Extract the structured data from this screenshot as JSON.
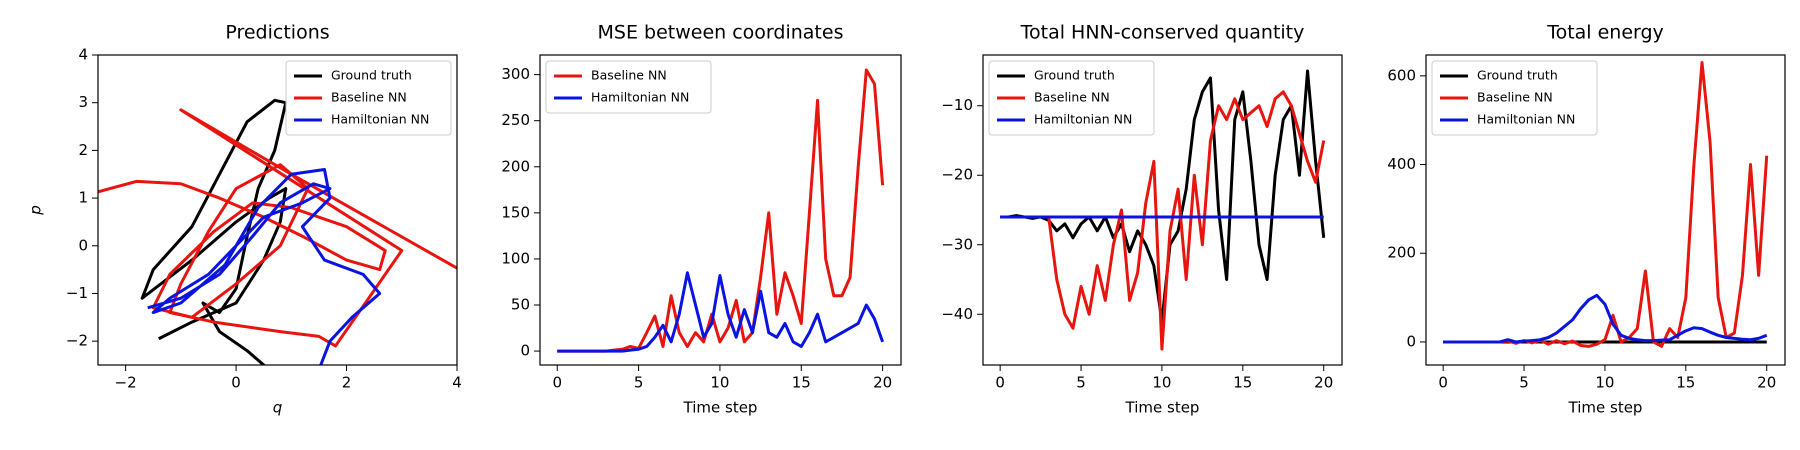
{
  "chart_data": [
    {
      "type": "line",
      "title": "Predictions",
      "x_label": "q",
      "y_label": "p",
      "xlim": [
        -2.5,
        4
      ],
      "ylim": [
        -2.5,
        4
      ],
      "xticks": [
        {
          "value": -2,
          "label": "−2"
        },
        0,
        2,
        4
      ],
      "yticks": [
        {
          "value": -2,
          "label": "−2"
        },
        {
          "value": -1,
          "label": "−1"
        },
        0,
        1,
        2,
        3,
        4
      ],
      "legend": "upper right",
      "series": [
        {
          "name": "Ground truth",
          "color": "#000000",
          "x": [
            -1.4,
            -0.8,
            0,
            0.5,
            0.8,
            0.9,
            0.6,
            0,
            -0.8,
            -1.7,
            -1.5,
            -0.8,
            -0.3,
            0.2,
            0.7,
            0.9,
            0.7,
            0.4,
            0.2,
            0,
            -0.3,
            -0.6,
            -0.3,
            0.2,
            0.6
          ],
          "values": [
            -1.95,
            -1.6,
            -1.2,
            -0.3,
            0.5,
            1.2,
            1.0,
            0.5,
            -0.3,
            -1.1,
            -0.5,
            0.4,
            1.5,
            2.6,
            3.05,
            3.0,
            2.0,
            1.2,
            0.2,
            -0.9,
            -1.4,
            -1.2,
            -1.8,
            -2.2,
            -2.6
          ]
        },
        {
          "name": "Baseline NN",
          "color": "#e8150f",
          "x": [
            -2.6,
            -1.8,
            -1.0,
            -0.3,
            0.5,
            1.2,
            2.0,
            2.6,
            2.7,
            2.0,
            1.0,
            0.3,
            -0.4,
            -1.2,
            -1.5,
            -0.8,
            0,
            0.8,
            1.3,
            0.8,
            0,
            -0.5,
            -1.0,
            -1.2,
            -0.4,
            0.8,
            1.5,
            1.8,
            3.0,
            -1.0,
            1.0,
            4.2
          ],
          "values": [
            1.1,
            1.35,
            1.3,
            1.0,
            0.6,
            0.2,
            -0.3,
            -0.5,
            -0.1,
            0.4,
            0.8,
            0.9,
            0.3,
            -0.6,
            -1.3,
            -1.5,
            -0.8,
            0,
            1.2,
            1.7,
            1.2,
            0.3,
            -0.8,
            -1.4,
            -1.6,
            -1.8,
            -1.9,
            -2.1,
            -0.1,
            2.85,
            1.5,
            -0.6
          ]
        },
        {
          "name": "Hamiltonian NN",
          "color": "#0a14e0",
          "x": [
            -1.6,
            -1.0,
            -0.3,
            0.3,
            0.8,
            1.4,
            1.7,
            1.2,
            0.5,
            0,
            -0.5,
            -1.2,
            -1.5,
            -1.0,
            -0.2,
            0.4,
            1.0,
            1.6,
            1.7,
            1.2,
            1.6,
            2.3,
            2.6,
            2.1,
            1.7,
            1.5
          ],
          "values": [
            -1.3,
            -1.1,
            -0.6,
            0.2,
            0.9,
            1.3,
            1.2,
            0.9,
            0.6,
            0,
            -0.6,
            -1.1,
            -1.4,
            -1.2,
            -0.4,
            0.8,
            1.5,
            1.6,
            1.0,
            0.4,
            -0.3,
            -0.6,
            -1.0,
            -1.5,
            -2.0,
            -2.6
          ]
        }
      ]
    },
    {
      "type": "line",
      "title": "MSE between coordinates",
      "x_label": "Time step",
      "x": [
        0,
        0.5,
        1,
        1.5,
        2,
        2.5,
        3,
        3.5,
        4,
        4.5,
        5,
        5.5,
        6,
        6.5,
        7,
        7.5,
        8,
        8.5,
        9,
        9.5,
        10,
        10.5,
        11,
        11.5,
        12,
        12.5,
        13,
        13.5,
        14,
        14.5,
        15,
        15.5,
        16,
        16.5,
        17,
        17.5,
        18,
        18.5,
        19,
        19.5,
        20
      ],
      "xlim": [
        -1.06,
        21.13
      ],
      "ylim": [
        -15.1,
        321.3
      ],
      "xticks": [
        0,
        5,
        10,
        15,
        20
      ],
      "yticks": [
        0,
        50,
        100,
        150,
        200,
        250,
        300
      ],
      "legend": "upper left",
      "series": [
        {
          "name": "Baseline NN",
          "color": "#e8150f",
          "values": [
            0,
            0,
            0,
            0,
            0,
            0,
            0,
            1,
            2,
            5,
            3,
            20,
            38,
            5,
            60,
            20,
            5,
            20,
            10,
            40,
            10,
            25,
            55,
            10,
            20,
            80,
            150,
            40,
            85,
            60,
            30,
            150,
            272,
            100,
            60,
            60,
            80,
            200,
            305,
            290,
            180
          ]
        },
        {
          "name": "Hamiltonian NN",
          "color": "#0a14e0",
          "values": [
            0,
            0,
            0,
            0,
            0,
            0,
            0,
            0,
            0,
            1,
            2,
            5,
            15,
            28,
            10,
            40,
            85,
            50,
            15,
            30,
            82,
            40,
            15,
            45,
            20,
            65,
            20,
            15,
            30,
            10,
            5,
            20,
            40,
            10,
            15,
            20,
            25,
            30,
            50,
            35,
            10
          ]
        }
      ]
    },
    {
      "type": "line",
      "title": "Total HNN-conserved quantity",
      "x_label": "Time step",
      "x": [
        0,
        0.5,
        1,
        1.5,
        2,
        2.5,
        3,
        3.5,
        4,
        4.5,
        5,
        5.5,
        6,
        6.5,
        7,
        7.5,
        8,
        8.5,
        9,
        9.5,
        10,
        10.5,
        11,
        11.5,
        12,
        12.5,
        13,
        13.5,
        14,
        14.5,
        15,
        15.5,
        16,
        16.5,
        17,
        17.5,
        18,
        18.5,
        19,
        19.5,
        20
      ],
      "xlim": [
        -1.06,
        21.13
      ],
      "ylim": [
        -47.3,
        -2.7
      ],
      "xticks": [
        0,
        5,
        10,
        15,
        20
      ],
      "yticks": [
        {
          "value": -40,
          "label": "−40"
        },
        {
          "value": -30,
          "label": "−30"
        },
        {
          "value": -20,
          "label": "−20"
        },
        {
          "value": -10,
          "label": "−10"
        }
      ],
      "legend": "upper left",
      "series": [
        {
          "name": "Ground truth",
          "color": "#000000",
          "values": [
            -26,
            -26,
            -25.8,
            -26,
            -26.2,
            -26,
            -26.5,
            -28,
            -27,
            -29,
            -27,
            -26,
            -28,
            -26,
            -29,
            -27,
            -31,
            -28,
            -30,
            -33,
            -41,
            -30,
            -28,
            -22,
            -12,
            -8,
            -6,
            -25,
            -35,
            -12,
            -8,
            -18,
            -30,
            -35,
            -20,
            -12,
            -10,
            -20,
            -5,
            -18,
            -29
          ]
        },
        {
          "name": "Baseline NN",
          "color": "#e8150f",
          "values": [
            -26,
            -26,
            -26,
            -26,
            -26,
            -26,
            -26,
            -35,
            -40,
            -42,
            -36,
            -40,
            -33,
            -38,
            -30,
            -25,
            -38,
            -34,
            -24,
            -18,
            -45,
            -28,
            -22,
            -35,
            -20,
            -30,
            -15,
            -10,
            -12,
            -9,
            -12,
            -11,
            -10,
            -13,
            -9,
            -8,
            -10,
            -14,
            -18,
            -21,
            -15
          ]
        },
        {
          "name": "Hamiltonian NN",
          "color": "#0a14e0",
          "values": [
            -26,
            -26,
            -26,
            -26,
            -26,
            -26,
            -26,
            -26,
            -26,
            -26,
            -26,
            -26,
            -26,
            -26,
            -26,
            -26,
            -26,
            -26,
            -26,
            -26,
            -26,
            -26,
            -26,
            -26,
            -26,
            -26,
            -26,
            -26,
            -26,
            -26,
            -26,
            -26,
            -26,
            -26,
            -26,
            -26,
            -26,
            -26,
            -26,
            -26,
            -26
          ]
        }
      ]
    },
    {
      "type": "line",
      "title": "Total energy",
      "x_label": "Time step",
      "x": [
        0,
        0.5,
        1,
        1.5,
        2,
        2.5,
        3,
        3.5,
        4,
        4.5,
        5,
        5.5,
        6,
        6.5,
        7,
        7.5,
        8,
        8.5,
        9,
        9.5,
        10,
        10.5,
        11,
        11.5,
        12,
        12.5,
        13,
        13.5,
        14,
        14.5,
        15,
        15.5,
        16,
        16.5,
        17,
        17.5,
        18,
        18.5,
        19,
        19.5,
        20
      ],
      "xlim": [
        -1.06,
        21.13
      ],
      "ylim": [
        -52,
        647
      ],
      "xticks": [
        0,
        5,
        10,
        15,
        20
      ],
      "yticks": [
        0,
        200,
        400,
        600
      ],
      "legend": "upper left",
      "series": [
        {
          "name": "Ground truth",
          "color": "#000000",
          "values": [
            0,
            0,
            0,
            0,
            0,
            0,
            0,
            0,
            0,
            0,
            0,
            0,
            0,
            0,
            0,
            0,
            0,
            0,
            0,
            0,
            0,
            0,
            0,
            0,
            0,
            0,
            0,
            0,
            0,
            0,
            0,
            0,
            0,
            0,
            0,
            0,
            0,
            0,
            0,
            0,
            0
          ]
        },
        {
          "name": "Baseline NN",
          "color": "#e8150f",
          "values": [
            0,
            0,
            0,
            0,
            0,
            0,
            0,
            0,
            2,
            -3,
            3,
            -2,
            4,
            -5,
            3,
            -4,
            2,
            -8,
            -10,
            -5,
            5,
            60,
            0,
            10,
            30,
            160,
            0,
            -10,
            30,
            10,
            100,
            400,
            630,
            450,
            100,
            10,
            20,
            150,
            400,
            150,
            420
          ]
        },
        {
          "name": "Hamiltonian NN",
          "color": "#0a14e0",
          "values": [
            0,
            0,
            0,
            0,
            0,
            0,
            0,
            0,
            5,
            0,
            2,
            3,
            5,
            10,
            20,
            35,
            50,
            75,
            95,
            105,
            85,
            40,
            15,
            8,
            5,
            3,
            3,
            4,
            5,
            15,
            25,
            32,
            30,
            22,
            15,
            10,
            8,
            6,
            5,
            8,
            15
          ]
        }
      ]
    }
  ]
}
